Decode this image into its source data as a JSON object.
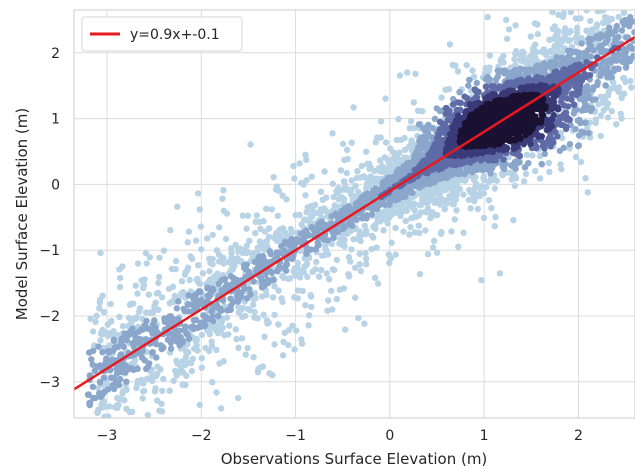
{
  "chart_data": {
    "type": "scatter",
    "title": "",
    "xlabel": "Observations Surface Elevation (m)",
    "ylabel": "Model Surface Elevation (m)",
    "xlim": [
      -3.35,
      2.6
    ],
    "ylim": [
      -3.55,
      2.65
    ],
    "xticks": [
      -3,
      -2,
      -1,
      0,
      1,
      2
    ],
    "yticks": [
      -3,
      -2,
      -1,
      0,
      1,
      2
    ],
    "xtick_labels": [
      "−3",
      "−2",
      "−1",
      "0",
      "1",
      "2"
    ],
    "ytick_labels": [
      "−3",
      "−2",
      "−1",
      "0",
      "1",
      "2"
    ],
    "grid": true,
    "density_colormap": [
      "#b9d3e6",
      "#8aa6cb",
      "#5e6ba6",
      "#3b3a78",
      "#1b1133"
    ],
    "scatter": {
      "description_points": [
        [
          -3.2,
          -3.1
        ],
        [
          -2.8,
          -2.7
        ],
        [
          -2.5,
          -2.3
        ],
        [
          -2.0,
          -2.0
        ],
        [
          -1.5,
          -1.5
        ],
        [
          -1.0,
          -1.0
        ],
        [
          -0.5,
          -0.5
        ],
        [
          0.0,
          -0.1
        ],
        [
          0.5,
          0.4
        ],
        [
          1.0,
          0.85
        ],
        [
          1.3,
          1.0
        ],
        [
          1.6,
          1.3
        ],
        [
          2.0,
          1.75
        ],
        [
          2.4,
          2.2
        ]
      ]
    },
    "fit_line": {
      "name": "y=0.9x+-0.1",
      "slope": 0.9,
      "intercept": -0.1,
      "color": "#e8191e"
    },
    "legend": {
      "position": "top-left",
      "entries": [
        "y=0.9x+-0.1"
      ]
    }
  }
}
